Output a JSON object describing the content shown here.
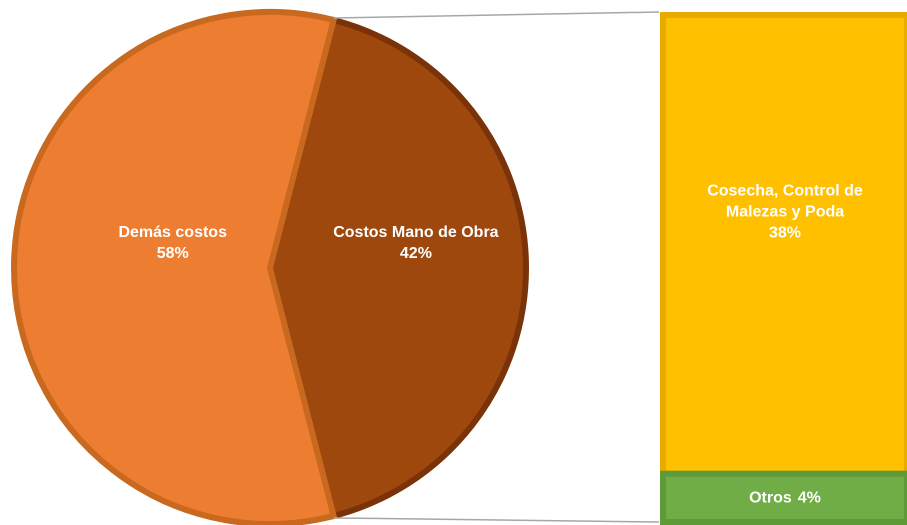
{
  "chart_data": {
    "type": "pie",
    "pie": {
      "categories": [
        "Demás costos",
        "Costos Mano de Obra"
      ],
      "values": [
        58,
        42
      ],
      "value_labels": [
        "58%",
        "42%"
      ],
      "colors": [
        "#ed7d31",
        "#9e480e"
      ],
      "strokes": [
        "#c8691f",
        "#7a3208"
      ]
    },
    "bar": {
      "categories": [
        "Cosecha, Control de Malezas y Poda",
        "Otros"
      ],
      "values": [
        38,
        4
      ],
      "value_labels": [
        "38%",
        "4%"
      ],
      "colors": [
        "#ffc000",
        "#70ad47"
      ],
      "strokes": [
        "#e6ac00",
        "#5e9a38"
      ]
    }
  }
}
